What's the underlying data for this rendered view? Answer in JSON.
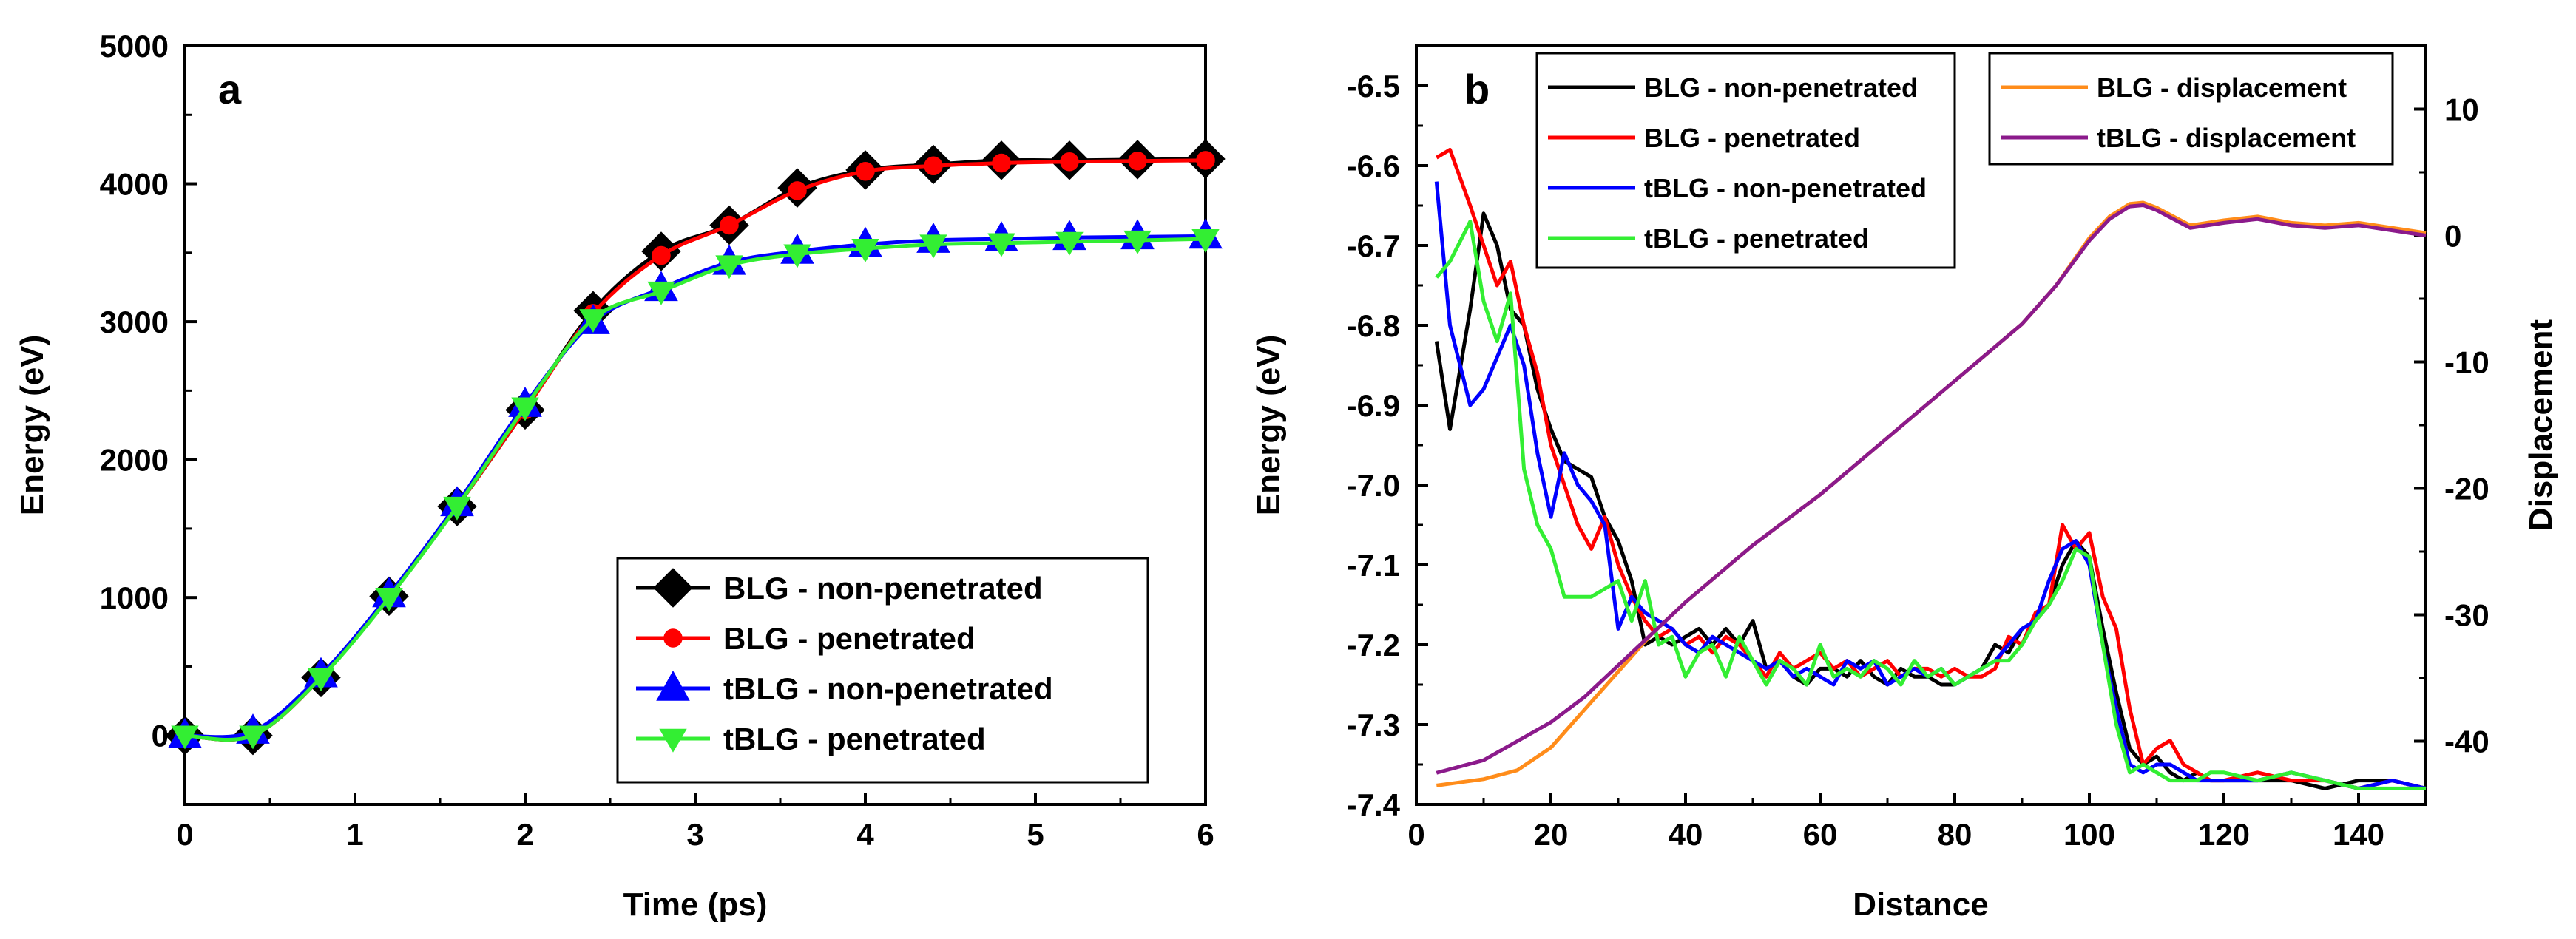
{
  "chart_data": [
    {
      "type": "line",
      "panel_label": "a",
      "xlabel": "Time (ps)",
      "ylabel": "Energy (eV)",
      "xlim": [
        0,
        6
      ],
      "ylim": [
        -500,
        5000
      ],
      "xticks": [
        0,
        1,
        2,
        3,
        4,
        5,
        6
      ],
      "yticks": [
        0,
        1000,
        2000,
        3000,
        4000,
        5000
      ],
      "legend_position": "bottom-right",
      "series": [
        {
          "name": "BLG - non-penetrated",
          "color": "#000000",
          "marker": "diamond",
          "x": [
            0,
            0.4,
            0.8,
            1.2,
            1.6,
            2.0,
            2.4,
            2.8,
            3.2,
            3.6,
            4.0,
            4.4,
            4.8,
            5.2,
            5.6,
            6.0
          ],
          "y": [
            0,
            0,
            420,
            1010,
            1660,
            2360,
            3080,
            3510,
            3700,
            3970,
            4100,
            4140,
            4170,
            4170,
            4175,
            4180
          ]
        },
        {
          "name": "BLG - penetrated",
          "color": "#ff0000",
          "marker": "circle",
          "x": [
            0,
            0.4,
            0.8,
            1.2,
            1.6,
            2.0,
            2.4,
            2.8,
            3.2,
            3.6,
            4.0,
            4.4,
            4.8,
            5.2,
            5.6,
            6.0
          ],
          "y": [
            0,
            0,
            420,
            1010,
            1660,
            2360,
            3060,
            3480,
            3700,
            3950,
            4090,
            4130,
            4150,
            4160,
            4165,
            4170
          ]
        },
        {
          "name": "tBLG - non-penetrated",
          "color": "#0000ff",
          "marker": "triangle-up",
          "x": [
            0,
            0.4,
            0.8,
            1.2,
            1.6,
            2.0,
            2.4,
            2.8,
            3.2,
            3.6,
            4.0,
            4.4,
            4.8,
            5.2,
            5.6,
            6.0
          ],
          "y": [
            0,
            30,
            440,
            1020,
            1680,
            2400,
            3000,
            3240,
            3430,
            3510,
            3560,
            3590,
            3600,
            3610,
            3615,
            3620
          ]
        },
        {
          "name": "tBLG - penetrated",
          "color": "#33ee33",
          "marker": "triangle-down",
          "x": [
            0,
            0.4,
            0.8,
            1.2,
            1.6,
            2.0,
            2.4,
            2.8,
            3.2,
            3.6,
            4.0,
            4.4,
            4.8,
            5.2,
            5.6,
            6.0
          ],
          "y": [
            0,
            0,
            420,
            1000,
            1660,
            2380,
            3020,
            3220,
            3410,
            3490,
            3530,
            3560,
            3570,
            3580,
            3590,
            3600
          ]
        }
      ]
    },
    {
      "type": "line",
      "panel_label": "b",
      "xlabel": "Distance",
      "ylabel": "Energy (eV)",
      "y2label": "Displacement",
      "xlim": [
        0,
        150
      ],
      "ylim": [
        -7.4,
        -6.45
      ],
      "y2lim": [
        -45,
        15
      ],
      "xticks": [
        0,
        20,
        40,
        60,
        80,
        100,
        120,
        140
      ],
      "yticks": [
        -7.4,
        -7.3,
        -7.2,
        -7.1,
        -7.0,
        -6.9,
        -6.8,
        -6.7,
        -6.6,
        -6.5
      ],
      "yticklabels": [
        "-7.4",
        "-7.3",
        "-7.2",
        "-7.1",
        "-7.0",
        "-6.9",
        "-6.8",
        "-6.7",
        "-6.6",
        "-6.5"
      ],
      "y2ticks": [
        -40,
        -30,
        -20,
        -10,
        0,
        10
      ],
      "legend_position": "top",
      "series": [
        {
          "name": "BLG - non-penetrated",
          "color": "#000000",
          "axis": "left",
          "x": [
            3,
            5,
            8,
            10,
            12,
            14,
            16,
            18,
            20,
            22,
            24,
            26,
            28,
            30,
            32,
            34,
            36,
            38,
            40,
            42,
            44,
            46,
            48,
            50,
            52,
            54,
            56,
            58,
            60,
            62,
            64,
            66,
            68,
            70,
            72,
            74,
            76,
            78,
            80,
            82,
            84,
            86,
            88,
            90,
            92,
            94,
            96,
            98,
            100,
            102,
            104,
            106,
            108,
            110,
            112,
            114,
            116,
            118,
            120,
            125,
            130,
            135,
            140,
            145,
            150
          ],
          "y": [
            -6.82,
            -6.93,
            -6.78,
            -6.66,
            -6.7,
            -6.78,
            -6.8,
            -6.88,
            -6.93,
            -6.97,
            -6.98,
            -6.99,
            -7.04,
            -7.07,
            -7.12,
            -7.2,
            -7.19,
            -7.2,
            -7.19,
            -7.18,
            -7.2,
            -7.18,
            -7.2,
            -7.17,
            -7.23,
            -7.22,
            -7.24,
            -7.25,
            -7.23,
            -7.23,
            -7.24,
            -7.22,
            -7.24,
            -7.25,
            -7.23,
            -7.24,
            -7.24,
            -7.25,
            -7.25,
            -7.24,
            -7.23,
            -7.2,
            -7.21,
            -7.18,
            -7.17,
            -7.15,
            -7.1,
            -7.07,
            -7.09,
            -7.18,
            -7.26,
            -7.33,
            -7.35,
            -7.34,
            -7.36,
            -7.37,
            -7.36,
            -7.37,
            -7.37,
            -7.37,
            -7.37,
            -7.38,
            -7.37,
            -7.37,
            -7.38
          ]
        },
        {
          "name": "BLG - penetrated",
          "color": "#ff0000",
          "axis": "left",
          "x": [
            3,
            5,
            8,
            10,
            12,
            14,
            16,
            18,
            20,
            22,
            24,
            26,
            28,
            30,
            32,
            34,
            36,
            38,
            40,
            42,
            44,
            46,
            48,
            50,
            52,
            54,
            56,
            58,
            60,
            62,
            64,
            66,
            68,
            70,
            72,
            74,
            76,
            78,
            80,
            82,
            84,
            86,
            88,
            90,
            92,
            94,
            96,
            98,
            100,
            102,
            104,
            106,
            108,
            110,
            112,
            114,
            116,
            118,
            120,
            125,
            130,
            135,
            140,
            145,
            150
          ],
          "y": [
            -6.59,
            -6.58,
            -6.65,
            -6.7,
            -6.75,
            -6.72,
            -6.8,
            -6.86,
            -6.95,
            -7.0,
            -7.05,
            -7.08,
            -7.04,
            -7.1,
            -7.14,
            -7.17,
            -7.19,
            -7.18,
            -7.2,
            -7.19,
            -7.21,
            -7.19,
            -7.2,
            -7.22,
            -7.24,
            -7.21,
            -7.23,
            -7.22,
            -7.21,
            -7.23,
            -7.22,
            -7.24,
            -7.23,
            -7.22,
            -7.24,
            -7.23,
            -7.23,
            -7.24,
            -7.23,
            -7.24,
            -7.24,
            -7.23,
            -7.19,
            -7.2,
            -7.16,
            -7.15,
            -7.05,
            -7.08,
            -7.06,
            -7.14,
            -7.18,
            -7.28,
            -7.35,
            -7.33,
            -7.32,
            -7.35,
            -7.36,
            -7.37,
            -7.37,
            -7.36,
            -7.37,
            -7.37,
            -7.38,
            -7.37,
            -7.38
          ]
        },
        {
          "name": "tBLG - non-penetrated",
          "color": "#0000ff",
          "axis": "left",
          "x": [
            3,
            5,
            8,
            10,
            12,
            14,
            16,
            18,
            20,
            22,
            24,
            26,
            28,
            30,
            32,
            34,
            36,
            38,
            40,
            42,
            44,
            46,
            48,
            50,
            52,
            54,
            56,
            58,
            60,
            62,
            64,
            66,
            68,
            70,
            72,
            74,
            76,
            78,
            80,
            82,
            84,
            86,
            88,
            90,
            92,
            94,
            96,
            98,
            100,
            102,
            104,
            106,
            108,
            110,
            112,
            114,
            116,
            118,
            120,
            125,
            130,
            135,
            140,
            145,
            150
          ],
          "y": [
            -6.62,
            -6.8,
            -6.9,
            -6.88,
            -6.84,
            -6.8,
            -6.85,
            -6.96,
            -7.04,
            -6.96,
            -7.0,
            -7.02,
            -7.05,
            -7.18,
            -7.14,
            -7.16,
            -7.17,
            -7.18,
            -7.2,
            -7.21,
            -7.19,
            -7.2,
            -7.21,
            -7.22,
            -7.23,
            -7.22,
            -7.24,
            -7.23,
            -7.24,
            -7.25,
            -7.22,
            -7.23,
            -7.22,
            -7.25,
            -7.24,
            -7.23,
            -7.24,
            -7.23,
            -7.25,
            -7.24,
            -7.23,
            -7.22,
            -7.2,
            -7.18,
            -7.17,
            -7.12,
            -7.08,
            -7.07,
            -7.1,
            -7.2,
            -7.28,
            -7.35,
            -7.36,
            -7.35,
            -7.35,
            -7.36,
            -7.37,
            -7.37,
            -7.37,
            -7.37,
            -7.36,
            -7.37,
            -7.38,
            -7.37,
            -7.38
          ]
        },
        {
          "name": "tBLG - penetrated",
          "color": "#33ee33",
          "axis": "left",
          "x": [
            3,
            5,
            8,
            10,
            12,
            14,
            16,
            18,
            20,
            22,
            24,
            26,
            28,
            30,
            32,
            34,
            36,
            38,
            40,
            42,
            44,
            46,
            48,
            50,
            52,
            54,
            56,
            58,
            60,
            62,
            64,
            66,
            68,
            70,
            72,
            74,
            76,
            78,
            80,
            82,
            84,
            86,
            88,
            90,
            92,
            94,
            96,
            98,
            100,
            102,
            104,
            106,
            108,
            110,
            112,
            114,
            116,
            118,
            120,
            125,
            130,
            135,
            140,
            145,
            150
          ],
          "y": [
            -6.74,
            -6.72,
            -6.67,
            -6.77,
            -6.82,
            -6.76,
            -6.98,
            -7.05,
            -7.08,
            -7.14,
            -7.14,
            -7.14,
            -7.13,
            -7.12,
            -7.17,
            -7.12,
            -7.2,
            -7.19,
            -7.24,
            -7.21,
            -7.2,
            -7.24,
            -7.19,
            -7.22,
            -7.25,
            -7.22,
            -7.23,
            -7.25,
            -7.2,
            -7.24,
            -7.23,
            -7.24,
            -7.22,
            -7.23,
            -7.25,
            -7.22,
            -7.24,
            -7.23,
            -7.25,
            -7.24,
            -7.23,
            -7.22,
            -7.22,
            -7.2,
            -7.17,
            -7.15,
            -7.12,
            -7.08,
            -7.09,
            -7.2,
            -7.3,
            -7.36,
            -7.35,
            -7.36,
            -7.37,
            -7.37,
            -7.37,
            -7.36,
            -7.36,
            -7.37,
            -7.36,
            -7.37,
            -7.38,
            -7.38,
            -7.38
          ]
        },
        {
          "name": "BLG - displacement",
          "color": "#ff8c1a",
          "axis": "right",
          "x": [
            3,
            10,
            15,
            20,
            25,
            30,
            35,
            40,
            50,
            60,
            70,
            80,
            90,
            95,
            100,
            103,
            106,
            108,
            110,
            115,
            120,
            125,
            130,
            135,
            140,
            145,
            150
          ],
          "y": [
            -43.5,
            -43.0,
            -42.3,
            -40.5,
            -37.5,
            -34.5,
            -31.5,
            -29.0,
            -24.5,
            -20.5,
            -16.0,
            -11.5,
            -7.0,
            -4.0,
            -0.2,
            1.5,
            2.5,
            2.6,
            2.2,
            0.8,
            1.2,
            1.5,
            1.0,
            0.8,
            1.0,
            0.6,
            0.2
          ]
        },
        {
          "name": "tBLG - displacement",
          "color": "#8b1a8b",
          "axis": "right",
          "x": [
            3,
            10,
            15,
            20,
            25,
            30,
            35,
            40,
            50,
            60,
            70,
            80,
            90,
            95,
            100,
            103,
            106,
            108,
            110,
            115,
            120,
            125,
            130,
            135,
            140,
            145,
            150
          ],
          "y": [
            -42.5,
            -41.5,
            -40.0,
            -38.5,
            -36.5,
            -34.0,
            -31.5,
            -29.0,
            -24.5,
            -20.5,
            -16.0,
            -11.5,
            -7.0,
            -4.0,
            -0.4,
            1.3,
            2.3,
            2.4,
            2.0,
            0.6,
            1.0,
            1.3,
            0.8,
            0.6,
            0.8,
            0.4,
            0.0
          ]
        }
      ]
    }
  ]
}
